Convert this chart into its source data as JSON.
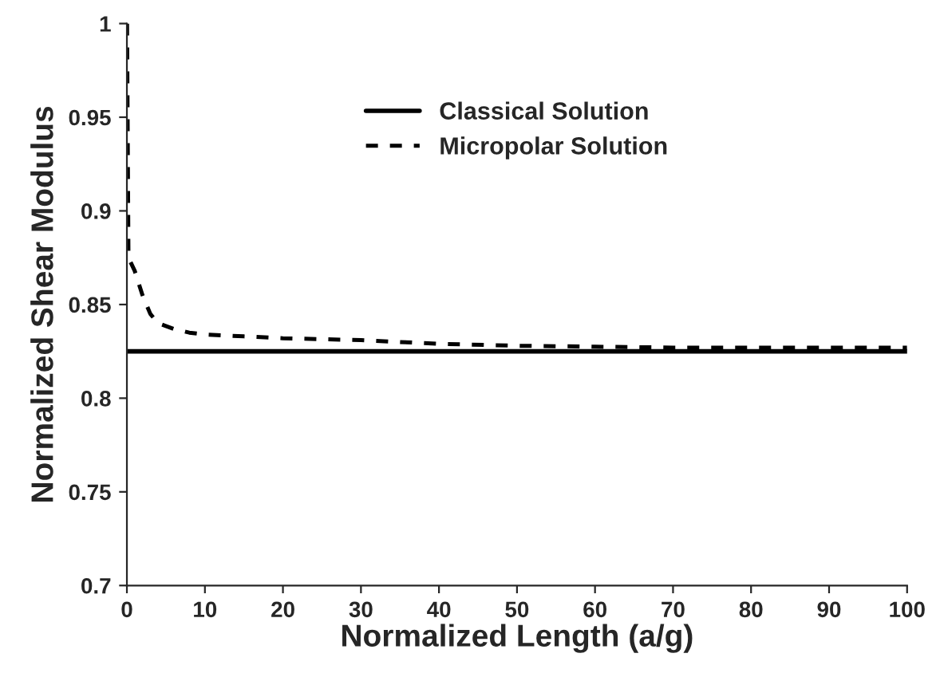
{
  "chart_data": {
    "type": "line",
    "xlabel": "Normalized Length (a/g)",
    "ylabel": "Normalized Shear Modulus",
    "xlim": [
      0,
      100
    ],
    "xticks": [
      0,
      10,
      20,
      30,
      40,
      50,
      60,
      70,
      80,
      90,
      100
    ],
    "ylim": [
      0.7,
      1
    ],
    "yticks": [
      {
        "value": 0.7,
        "label": "0.7"
      },
      {
        "value": 0.75,
        "label": "0.75"
      },
      {
        "value": 0.8,
        "label": "0.8"
      },
      {
        "value": 0.85,
        "label": "0.85"
      },
      {
        "value": 0.9,
        "label": "0.9"
      },
      {
        "value": 0.95,
        "label": "0.95"
      },
      {
        "value": 1,
        "label": "1"
      }
    ],
    "legend": "top",
    "grid": false,
    "marker": "none",
    "series": [
      {
        "name": "Classical Solution",
        "color": "#000000",
        "line_style": "solid",
        "x": [
          0,
          100
        ],
        "values": [
          0.825,
          0.825
        ]
      },
      {
        "name": "Micropolar Solution",
        "color": "#000000",
        "line_style": "dashed",
        "x": [
          0.02,
          0.2,
          1,
          2,
          3,
          4,
          6,
          8,
          10,
          15,
          20,
          30,
          40,
          50,
          60,
          70,
          80,
          90,
          100
        ],
        "values": [
          1.0,
          0.875,
          0.868,
          0.855,
          0.845,
          0.84,
          0.837,
          0.835,
          0.834,
          0.833,
          0.832,
          0.831,
          0.829,
          0.828,
          0.8275,
          0.827,
          0.827,
          0.827,
          0.827
        ]
      }
    ]
  }
}
